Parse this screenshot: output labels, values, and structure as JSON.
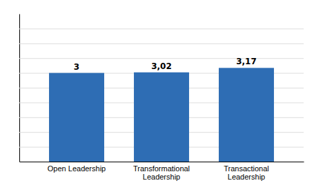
{
  "chart_data": {
    "type": "bar",
    "categories": [
      "Open Leadership",
      "Transformational\nLeadership",
      "Transactional\nLeadership"
    ],
    "values": [
      3.0,
      3.02,
      3.17
    ],
    "value_labels": [
      "3",
      "3,02",
      "3,17"
    ],
    "data_labels": true,
    "color": "#2E6DB4",
    "ylim": [
      0,
      5.0
    ],
    "yticks": [
      0.5,
      1.0,
      1.5,
      2.0,
      2.5,
      3.0,
      3.5,
      4.0,
      4.5
    ],
    "grid": true,
    "tick_labels": "x"
  }
}
